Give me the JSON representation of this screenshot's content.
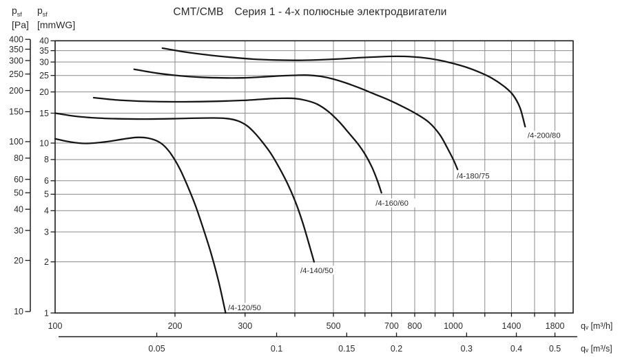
{
  "page": {
    "background": "#ffffff",
    "text_color": "#2b2b2b",
    "axis_color": "#1a1a1a",
    "grid_color": "#8a8a8a",
    "curve_color": "#161616"
  },
  "header": {
    "title_product": "CMT/CMB",
    "title_series": "Серия 1 - 4-х полюсные электродвигатели"
  },
  "pressure_axis_pa": {
    "symbol": "p",
    "symbol_sub": "sf",
    "unit": "[Pa]",
    "ticks": [
      400,
      350,
      300,
      250,
      200,
      150,
      100,
      80,
      60,
      50,
      40,
      30,
      20,
      10
    ]
  },
  "pressure_axis_mmwg": {
    "symbol": "p",
    "symbol_sub": "sf",
    "unit": "[mmWG]",
    "ticks": [
      40,
      35,
      30,
      25,
      20,
      15,
      10,
      8,
      6,
      5,
      4,
      3,
      2,
      1
    ]
  },
  "flow_axis_m3h": {
    "unit": "qᵥ [m³/h]",
    "labeled_ticks": [
      100,
      200,
      300,
      500,
      700,
      800,
      1000,
      1400,
      1800
    ]
  },
  "flow_axis_m3s": {
    "unit": "qᵥ [m³/s]",
    "ticks": [
      0.05,
      0.1,
      0.15,
      0.2,
      0.3,
      0.4,
      0.5
    ]
  },
  "chart_data": {
    "type": "line",
    "title": "CMT/CMB Серия 1 - 4-х полюсные электродвигатели",
    "xlabel": "qᵥ [m³/h]",
    "xlabel_secondary": "qᵥ [m³/s]",
    "ylabel_left": "pₛf [Pa]",
    "ylabel_right": "pₛf [mmWG]",
    "x_scale": "log",
    "y_scale": "log",
    "grid": true,
    "x_range_m3h": [
      100,
      2000
    ],
    "y_range_mmwg": [
      1,
      40
    ],
    "x_gridlines_m3h": [
      200,
      300,
      400,
      500,
      600,
      700,
      800,
      900,
      1000,
      1200,
      1400,
      1600,
      1800
    ],
    "y_gridlines_mmwg": [
      2,
      3,
      4,
      5,
      6,
      8,
      10,
      15,
      20,
      25,
      30,
      35
    ],
    "pa_per_mmwg": 9.80665,
    "series": [
      {
        "name": "/4-120/50",
        "label_at": [
          272,
          1.04
        ],
        "points_m3h_mmwg": [
          [
            100,
            10.6
          ],
          [
            108,
            10.2
          ],
          [
            119,
            9.95
          ],
          [
            133,
            10.15
          ],
          [
            148,
            10.55
          ],
          [
            160,
            10.8
          ],
          [
            171,
            10.7
          ],
          [
            181,
            10.25
          ],
          [
            189,
            9.5
          ],
          [
            197,
            8.4
          ],
          [
            206,
            7.0
          ],
          [
            215,
            5.6
          ],
          [
            225,
            4.3
          ],
          [
            236,
            3.1
          ],
          [
            247,
            2.2
          ],
          [
            258,
            1.5
          ],
          [
            268,
            1.0
          ]
        ]
      },
      {
        "name": "/4-140/50",
        "label_at": [
          413,
          1.72
        ],
        "points_m3h_mmwg": [
          [
            100,
            15.0
          ],
          [
            112,
            14.4
          ],
          [
            127,
            14.05
          ],
          [
            145,
            13.9
          ],
          [
            167,
            13.85
          ],
          [
            192,
            13.9
          ],
          [
            220,
            14.0
          ],
          [
            248,
            14.05
          ],
          [
            270,
            13.95
          ],
          [
            288,
            13.5
          ],
          [
            304,
            12.6
          ],
          [
            318,
            11.4
          ],
          [
            332,
            10.1
          ],
          [
            348,
            8.7
          ],
          [
            365,
            7.2
          ],
          [
            383,
            5.8
          ],
          [
            400,
            4.6
          ],
          [
            417,
            3.5
          ],
          [
            433,
            2.6
          ],
          [
            447,
            2.0
          ]
        ]
      },
      {
        "name": "/4-160/60",
        "label_at": [
          638,
          4.28
        ],
        "points_m3h_mmwg": [
          [
            125,
            18.5
          ],
          [
            145,
            17.9
          ],
          [
            170,
            17.6
          ],
          [
            200,
            17.5
          ],
          [
            235,
            17.55
          ],
          [
            270,
            17.7
          ],
          [
            305,
            17.9
          ],
          [
            340,
            18.2
          ],
          [
            372,
            18.35
          ],
          [
            400,
            18.3
          ],
          [
            428,
            17.8
          ],
          [
            456,
            16.9
          ],
          [
            486,
            15.3
          ],
          [
            516,
            13.4
          ],
          [
            546,
            11.5
          ],
          [
            576,
            9.9
          ],
          [
            602,
            8.5
          ],
          [
            625,
            7.2
          ],
          [
            645,
            6.0
          ],
          [
            660,
            5.1
          ]
        ]
      },
      {
        "name": "/4-180/75",
        "label_at": [
          1020,
          6.2
        ],
        "points_m3h_mmwg": [
          [
            158,
            27.2
          ],
          [
            180,
            25.8
          ],
          [
            205,
            24.9
          ],
          [
            232,
            24.4
          ],
          [
            262,
            24.2
          ],
          [
            295,
            24.2
          ],
          [
            330,
            24.5
          ],
          [
            365,
            24.85
          ],
          [
            400,
            25.05
          ],
          [
            432,
            25.1
          ],
          [
            465,
            24.7
          ],
          [
            500,
            23.8
          ],
          [
            540,
            22.5
          ],
          [
            585,
            21.0
          ],
          [
            635,
            19.4
          ],
          [
            690,
            17.9
          ],
          [
            750,
            16.3
          ],
          [
            810,
            14.8
          ],
          [
            870,
            13.2
          ],
          [
            925,
            11.2
          ],
          [
            965,
            9.4
          ],
          [
            1000,
            8.0
          ],
          [
            1025,
            7.0
          ]
        ]
      },
      {
        "name": "/4-200/80",
        "label_at": [
          1537,
          10.7
        ],
        "points_m3h_mmwg": [
          [
            186,
            36.2
          ],
          [
            210,
            34.5
          ],
          [
            240,
            33.1
          ],
          [
            275,
            32.0
          ],
          [
            315,
            31.2
          ],
          [
            360,
            30.8
          ],
          [
            410,
            30.7
          ],
          [
            460,
            30.9
          ],
          [
            520,
            31.3
          ],
          [
            580,
            31.8
          ],
          [
            650,
            32.2
          ],
          [
            720,
            32.4
          ],
          [
            790,
            32.2
          ],
          [
            860,
            31.6
          ],
          [
            930,
            30.6
          ],
          [
            1000,
            29.4
          ],
          [
            1080,
            27.9
          ],
          [
            1160,
            26.2
          ],
          [
            1250,
            24.1
          ],
          [
            1340,
            21.6
          ],
          [
            1410,
            19.3
          ],
          [
            1470,
            16.2
          ],
          [
            1515,
            12.5
          ]
        ]
      }
    ]
  }
}
